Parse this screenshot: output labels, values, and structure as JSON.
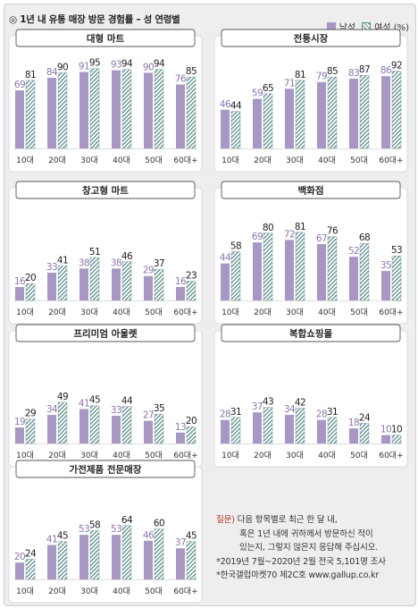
{
  "title": "◎  1년 내 유통 매장 방문 경험률 – 성 연령별",
  "legend": {
    "male": "남성",
    "female": "여성 (%)"
  },
  "colors": {
    "male": "#a897c4",
    "female_stripe": "#5f8d8a",
    "panel_bg": "#ffffff",
    "outer_bg": "#eeeeee"
  },
  "note": {
    "q_label": "질문)",
    "q_line1": "다음 항목별로 최근 한 달 내,",
    "q_line2": "혹은 1년 내에 귀하께서 방문하신 적이",
    "q_line3": "있는지, 그렇지 않은지 응답해 주십시오.",
    "survey": "*2019년 7월~2020년 2월 전국 5,101명 조사",
    "source": "*한국갤럽마켓70 제2C호 www.gallup.co.kr"
  },
  "chart_data": [
    {
      "type": "bar",
      "title": "대형 마트",
      "categories": [
        "10대",
        "20대",
        "30대",
        "40대",
        "50대",
        "60대+"
      ],
      "series": [
        {
          "name": "남성",
          "values": [
            69,
            84,
            91,
            93,
            90,
            76
          ]
        },
        {
          "name": "여성",
          "values": [
            81,
            90,
            95,
            94,
            94,
            85
          ]
        }
      ],
      "ylim": [
        0,
        100
      ]
    },
    {
      "type": "bar",
      "title": "전통시장",
      "categories": [
        "10대",
        "20대",
        "30대",
        "40대",
        "50대",
        "60대+"
      ],
      "series": [
        {
          "name": "남성",
          "values": [
            46,
            59,
            71,
            79,
            83,
            86
          ]
        },
        {
          "name": "여성",
          "values": [
            44,
            65,
            81,
            85,
            87,
            92
          ]
        }
      ],
      "ylim": [
        0,
        100
      ]
    },
    {
      "type": "bar",
      "title": "창고형 마트",
      "categories": [
        "10대",
        "20대",
        "30대",
        "40대",
        "50대",
        "60대+"
      ],
      "series": [
        {
          "name": "남성",
          "values": [
            16,
            33,
            38,
            38,
            29,
            16
          ]
        },
        {
          "name": "여성",
          "values": [
            20,
            41,
            51,
            46,
            37,
            23
          ]
        }
      ],
      "ylim": [
        0,
        100
      ]
    },
    {
      "type": "bar",
      "title": "백화점",
      "categories": [
        "10대",
        "20대",
        "30대",
        "40대",
        "50대",
        "60대+"
      ],
      "series": [
        {
          "name": "남성",
          "values": [
            44,
            69,
            72,
            67,
            52,
            35
          ]
        },
        {
          "name": "여성",
          "values": [
            58,
            80,
            81,
            76,
            68,
            53
          ]
        }
      ],
      "ylim": [
        0,
        100
      ]
    },
    {
      "type": "bar",
      "title": "프리미엄 아울렛",
      "categories": [
        "10대",
        "20대",
        "30대",
        "40대",
        "50대",
        "60대+"
      ],
      "series": [
        {
          "name": "남성",
          "values": [
            19,
            34,
            41,
            33,
            27,
            13
          ]
        },
        {
          "name": "여성",
          "values": [
            29,
            49,
            45,
            44,
            35,
            20
          ]
        }
      ],
      "ylim": [
        0,
        100
      ]
    },
    {
      "type": "bar",
      "title": "복합쇼핑몰",
      "categories": [
        "10대",
        "20대",
        "30대",
        "40대",
        "50대",
        "60대+"
      ],
      "series": [
        {
          "name": "남성",
          "values": [
            28,
            37,
            34,
            28,
            18,
            10
          ]
        },
        {
          "name": "여성",
          "values": [
            31,
            43,
            42,
            31,
            24,
            10
          ]
        }
      ],
      "ylim": [
        0,
        100
      ]
    },
    {
      "type": "bar",
      "title": "가전제품 전문매장",
      "categories": [
        "10대",
        "20대",
        "30대",
        "40대",
        "50대",
        "60대+"
      ],
      "series": [
        {
          "name": "남성",
          "values": [
            20,
            41,
            53,
            53,
            46,
            37
          ]
        },
        {
          "name": "여성",
          "values": [
            24,
            45,
            58,
            64,
            60,
            45
          ]
        }
      ],
      "ylim": [
        0,
        100
      ]
    }
  ]
}
